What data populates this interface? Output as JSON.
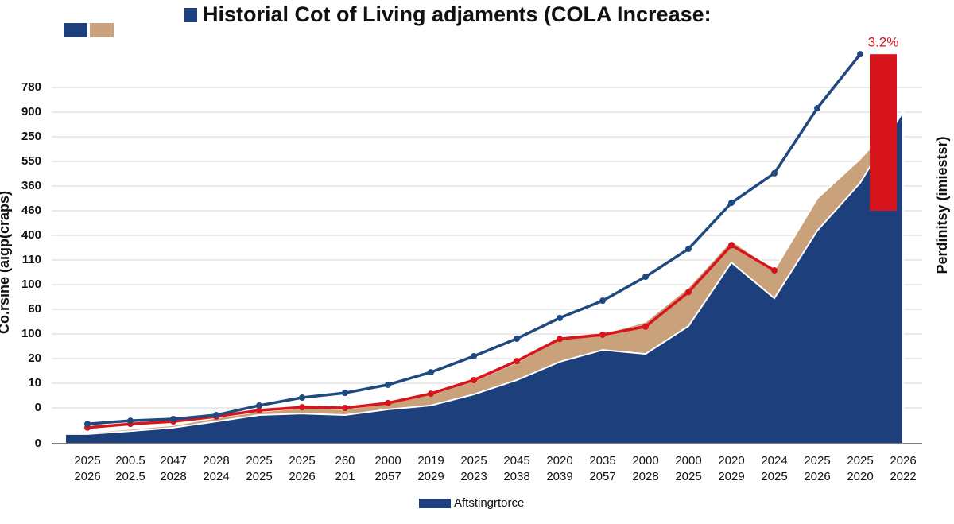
{
  "chart_data": {
    "type": "line",
    "title": "Historial Cot of Living adjaments (COLA Increase:",
    "y_label": "Co.rsine (aigp(craps)",
    "y2_label": "Perdinitsy (imiestsr)",
    "annotation": "3.2%",
    "categories": [
      [
        "2025",
        "2026"
      ],
      [
        "200.5",
        "202.5"
      ],
      [
        "2047",
        "2028"
      ],
      [
        "2028",
        "2024"
      ],
      [
        "2025",
        "2025"
      ],
      [
        "2025",
        "2026"
      ],
      [
        "260",
        "201"
      ],
      [
        "2000",
        "2057"
      ],
      [
        "2019",
        "2029"
      ],
      [
        "2025",
        "2023"
      ],
      [
        "2045",
        "2038"
      ],
      [
        "2020",
        "2039"
      ],
      [
        "2035",
        "2057"
      ],
      [
        "2000",
        "2028"
      ],
      [
        "2000",
        "2025"
      ],
      [
        "2020",
        "2029"
      ],
      [
        "2024",
        "2025"
      ],
      [
        "2025",
        "2026"
      ],
      [
        "2025",
        "2020"
      ],
      [
        "2026",
        "2022"
      ]
    ],
    "ylim": [
      -1.45,
      14.6
    ],
    "yticks": [
      {
        "value": -1.45,
        "label": "0"
      },
      0,
      {
        "value": 1,
        "label": "10"
      },
      {
        "value": 2,
        "label": "20"
      },
      {
        "value": 3,
        "label": "100"
      },
      {
        "value": 4,
        "label": "60"
      },
      {
        "value": 5,
        "label": "100"
      },
      {
        "value": 6,
        "label": "110"
      },
      {
        "value": 7,
        "label": "400"
      },
      {
        "value": 8,
        "label": "460"
      },
      {
        "value": 9,
        "label": "360"
      },
      {
        "value": 10,
        "label": "550"
      },
      {
        "value": 11,
        "label": "250"
      },
      {
        "value": 12,
        "label": "900"
      },
      {
        "value": 13,
        "label": "780"
      }
    ],
    "grid": true,
    "series": [
      {
        "type": "area",
        "color": "#c9a27c",
        "values": [
          -1.0,
          -0.85,
          -0.7,
          -0.4,
          -0.15,
          0,
          -0.05,
          0.2,
          0.55,
          1.1,
          1.85,
          2.8,
          3.0,
          3.5,
          4.9,
          6.8,
          5.6,
          8.5,
          10.1,
          12.0
        ]
      },
      {
        "type": "area",
        "name": "Aftstingrtorce",
        "color": "#1d3f7c",
        "values": [
          -1.06,
          -0.94,
          -0.8,
          -0.55,
          -0.29,
          -0.23,
          -0.29,
          -0.06,
          0.1,
          0.55,
          1.13,
          1.87,
          2.35,
          2.19,
          3.32,
          5.9,
          4.45,
          7.19,
          9.13,
          12.03
        ]
      },
      {
        "type": "bar",
        "color": "#d8141c",
        "values": [
          null,
          null,
          null,
          null,
          null,
          null,
          null,
          null,
          null,
          null,
          null,
          null,
          null,
          null,
          null,
          null,
          null,
          null,
          null,
          14.35
        ]
      },
      {
        "type": "line",
        "color": "#d8141c",
        "values": [
          -0.8,
          -0.65,
          -0.55,
          -0.35,
          -0.1,
          0.03,
          0,
          0.2,
          0.58,
          1.13,
          1.9,
          2.8,
          2.97,
          3.3,
          4.7,
          6.6,
          5.58,
          null,
          null,
          null
        ]
      },
      {
        "type": "line",
        "color": "#1f4a80",
        "values": [
          -0.65,
          -0.52,
          -0.45,
          -0.29,
          0.1,
          0.42,
          0.61,
          0.94,
          1.45,
          2.1,
          2.81,
          3.65,
          4.35,
          5.32,
          6.45,
          8.32,
          9.52,
          12.16,
          14.35,
          null
        ]
      }
    ]
  }
}
